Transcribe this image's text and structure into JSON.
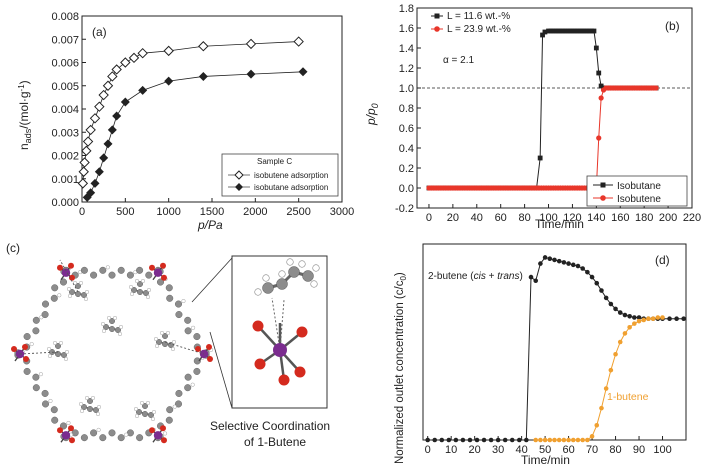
{
  "panel_labels": {
    "a": "(a)",
    "b": "(b)",
    "c": "(c)",
    "d": "(d)"
  },
  "panel_c": {
    "caption_line1": "Selective Coordination",
    "caption_line2": "of 1-Butene"
  },
  "colors": {
    "black": "#222222",
    "red": "#e8362a",
    "orange": "#f0a030",
    "purple": "#7b2c8f",
    "oxygen": "#d42a1e",
    "carbon": "#8c8c8c",
    "hydrogen": "#ffffff"
  },
  "chart_data": [
    {
      "id": "a",
      "type": "line",
      "title": "",
      "xlabel": "p/Pa",
      "ylabel": "n_ads/(mol·g⁻¹)",
      "xlim": [
        0,
        3000
      ],
      "ylim": [
        0,
        0.008
      ],
      "xticks": [
        0,
        500,
        1000,
        1500,
        2000,
        2500,
        3000
      ],
      "yticks": [
        0.0,
        0.001,
        0.002,
        0.003,
        0.004,
        0.005,
        0.006,
        0.007,
        0.008
      ],
      "ytick_labels": [
        "0.000",
        "0.001",
        "0.002",
        "0.003",
        "0.004",
        "0.005",
        "0.006",
        "0.007",
        "0.008"
      ],
      "legend": {
        "title": "Sample C",
        "position": "lower-right"
      },
      "series": [
        {
          "name": "isobutene adsorption",
          "marker": "open-diamond",
          "x": [
            10,
            20,
            30,
            50,
            70,
            100,
            150,
            200,
            250,
            300,
            350,
            400,
            500,
            600,
            700,
            1000,
            1400,
            1950,
            2500
          ],
          "y": [
            0.0008,
            0.0013,
            0.0017,
            0.0022,
            0.0026,
            0.0031,
            0.0036,
            0.0041,
            0.0046,
            0.005,
            0.0054,
            0.0057,
            0.006,
            0.0062,
            0.0064,
            0.0065,
            0.0067,
            0.0068,
            0.0069
          ]
        },
        {
          "name": "isobutane adsorption",
          "marker": "filled-diamond",
          "x": [
            60,
            100,
            150,
            200,
            250,
            300,
            350,
            400,
            500,
            700,
            1000,
            1400,
            1950,
            2550
          ],
          "y": [
            0.0002,
            0.0004,
            0.0008,
            0.0013,
            0.0019,
            0.0025,
            0.0031,
            0.0037,
            0.0043,
            0.0048,
            0.0052,
            0.0054,
            0.0055,
            0.0056
          ]
        }
      ]
    },
    {
      "id": "b",
      "type": "line",
      "title": "",
      "xlabel": "Time/min",
      "ylabel": "p/p₀",
      "xlim": [
        -10,
        220
      ],
      "ylim": [
        -0.2,
        1.8
      ],
      "xticks": [
        0,
        20,
        40,
        60,
        80,
        100,
        120,
        140,
        160,
        180,
        200,
        220
      ],
      "yticks": [
        -0.2,
        0.0,
        0.2,
        0.4,
        0.6,
        0.8,
        1.0,
        1.2,
        1.4,
        1.6,
        1.8
      ],
      "ytick_labels": [
        "-0.2",
        "0.0",
        "0.2",
        "0.4",
        "0.6",
        "0.8",
        "1.0",
        "1.2",
        "1.4",
        "1.6",
        "1.8"
      ],
      "reference_line": 1.0,
      "annotations": [
        "L = 11.6 wt.-%",
        "L = 23.9 wt.-%",
        "α = 2.1"
      ],
      "legend": {
        "position": "lower-right"
      },
      "series": [
        {
          "name": "Isobutane",
          "color": "#222222",
          "marker": "square",
          "x": [
            0,
            20,
            40,
            60,
            80,
            90,
            93,
            95,
            97,
            100,
            110,
            120,
            130,
            138,
            140,
            142,
            144,
            146,
            150,
            160,
            170,
            180,
            190
          ],
          "y": [
            0,
            0,
            0,
            0,
            0,
            0,
            0.3,
            1.53,
            1.56,
            1.57,
            1.57,
            1.57,
            1.57,
            1.57,
            1.4,
            1.15,
            1.02,
            1.0,
            1.0,
            1.0,
            1.0,
            1.0,
            1.0
          ]
        },
        {
          "name": "Isobutene",
          "color": "#e8362a",
          "marker": "circle",
          "x": [
            0,
            20,
            40,
            60,
            80,
            100,
            120,
            140,
            142,
            144,
            146,
            148,
            150,
            160,
            170,
            180,
            190
          ],
          "y": [
            0,
            0,
            0,
            0,
            0,
            0,
            0,
            0,
            0.5,
            0.9,
            0.98,
            1.0,
            1.0,
            1.0,
            1.0,
            1.0,
            1.0
          ]
        }
      ]
    },
    {
      "id": "d",
      "type": "line",
      "title": "",
      "xlabel": "Time/min",
      "ylabel": "Normalized outlet concentration (c/c₀)",
      "xlim": [
        -2,
        110
      ],
      "ylim": [
        0,
        1.6
      ],
      "xticks": [
        0,
        10,
        20,
        30,
        40,
        50,
        60,
        70,
        80,
        90,
        100
      ],
      "yticks": [],
      "series": [
        {
          "name": "2-butene (cis + trans)",
          "color": "#222222",
          "marker": "circle",
          "x": [
            0,
            3,
            6,
            9,
            12,
            15,
            18,
            21,
            24,
            27,
            30,
            33,
            36,
            39,
            42,
            44,
            46,
            48,
            50,
            52,
            54,
            56,
            58,
            60,
            62,
            64,
            66,
            68,
            70,
            72,
            74,
            76,
            78,
            80,
            82,
            84,
            86,
            88,
            90,
            92,
            94,
            96,
            98,
            100,
            103,
            106,
            109
          ],
          "y": [
            0,
            0,
            0,
            0,
            0,
            0,
            0,
            0,
            0,
            0,
            0,
            0,
            0,
            0,
            0,
            1.33,
            1.3,
            1.44,
            1.49,
            1.48,
            1.47,
            1.46,
            1.45,
            1.44,
            1.43,
            1.42,
            1.4,
            1.37,
            1.33,
            1.28,
            1.22,
            1.16,
            1.11,
            1.07,
            1.04,
            1.02,
            1.01,
            1.0,
            1.0,
            0.99,
            0.99,
            0.99,
            0.99,
            0.99,
            0.99,
            0.99,
            0.99
          ]
        },
        {
          "name": "1-butene",
          "color": "#f0a030",
          "marker": "circle",
          "x": [
            46,
            48,
            50,
            52,
            54,
            56,
            58,
            60,
            62,
            64,
            66,
            68,
            70,
            72,
            74,
            76,
            78,
            80,
            82,
            84,
            86,
            88,
            90,
            92,
            94,
            96,
            98,
            100
          ],
          "y": [
            0,
            0,
            0,
            0,
            0,
            0,
            0,
            0,
            0,
            0,
            0,
            0,
            0.03,
            0.12,
            0.26,
            0.42,
            0.57,
            0.7,
            0.8,
            0.87,
            0.92,
            0.95,
            0.97,
            0.98,
            0.99,
            0.99,
            1.0,
            1.0
          ]
        }
      ],
      "series_labels": [
        "2-butene (cis + trans)",
        "1-butene"
      ]
    }
  ]
}
